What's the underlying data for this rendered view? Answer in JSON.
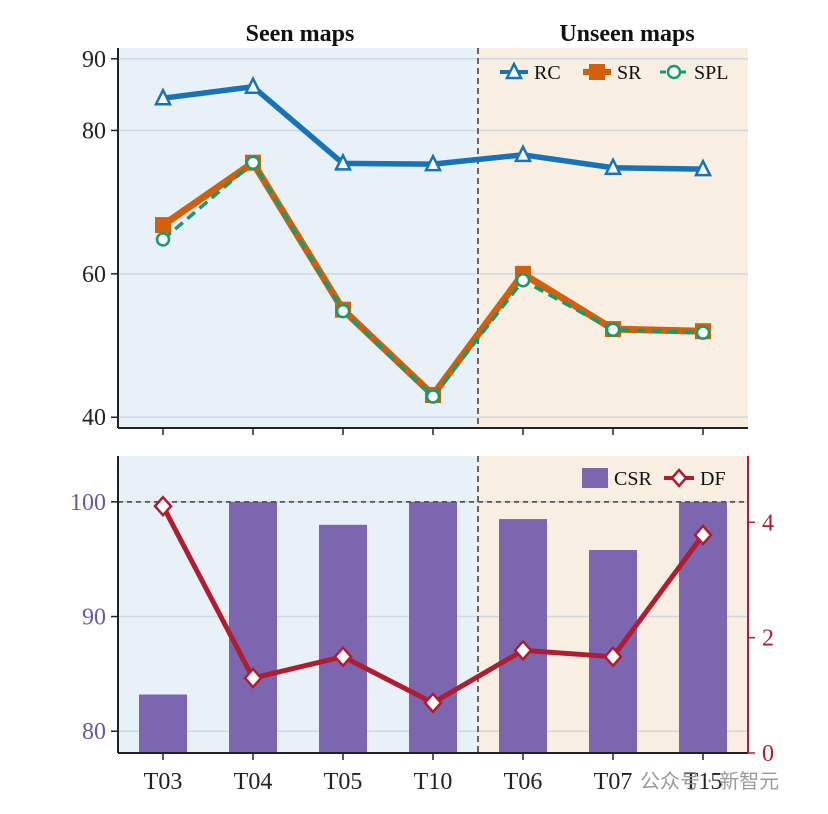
{
  "chart_data": [
    {
      "type": "line",
      "categories": [
        "T03",
        "T04",
        "T05",
        "T10",
        "T06",
        "T07",
        "T15"
      ],
      "groups": [
        {
          "title": "Seen maps",
          "categories": [
            "T03",
            "T04",
            "T05",
            "T10"
          ],
          "color": "#e8f0f8"
        },
        {
          "title": "Unseen maps",
          "categories": [
            "T06",
            "T07",
            "T15"
          ],
          "color": "#f8eee2"
        }
      ],
      "series": [
        {
          "name": "RC",
          "values": [
            84.5,
            86.1,
            75.4,
            75.3,
            76.6,
            74.8,
            74.6
          ],
          "color": "#1673b8",
          "marker": "triangle"
        },
        {
          "name": "SR",
          "values": [
            66.8,
            75.5,
            55.0,
            43.1,
            60.0,
            52.3,
            52.0
          ],
          "color": "#d35f0b",
          "marker": "square"
        },
        {
          "name": "SPL",
          "values": [
            64.8,
            75.5,
            54.8,
            42.9,
            59.1,
            52.2,
            51.8
          ],
          "color": "#169a6e",
          "marker": "circle",
          "dashed": true
        }
      ],
      "ylim": [
        38.5,
        91.5
      ],
      "yticks": [
        40,
        60,
        80,
        90
      ],
      "grid": true,
      "legend": "top-right"
    },
    {
      "type": "bar",
      "categories": [
        "T03",
        "T04",
        "T05",
        "T10",
        "T06",
        "T07",
        "T15"
      ],
      "series": [
        {
          "name": "CSR",
          "values": [
            83.2,
            100.0,
            98.0,
            100.0,
            98.5,
            95.8,
            100.0
          ],
          "color": "#7c66b0",
          "axis": "left"
        },
        {
          "name": "DF",
          "values": [
            4.28,
            1.3,
            1.67,
            0.87,
            1.78,
            1.67,
            3.78
          ],
          "color": "#b01c30",
          "marker": "diamond",
          "axis": "right"
        }
      ],
      "ylim_left": [
        78.1,
        104
      ],
      "yticks_left": [
        80,
        90,
        100
      ],
      "ylim_right": [
        0,
        5.15
      ],
      "yticks_right": [
        0,
        2,
        4
      ],
      "reference_line": 100,
      "grid": true,
      "legend": "top-right"
    }
  ],
  "watermark": "公众号 · 新智元"
}
